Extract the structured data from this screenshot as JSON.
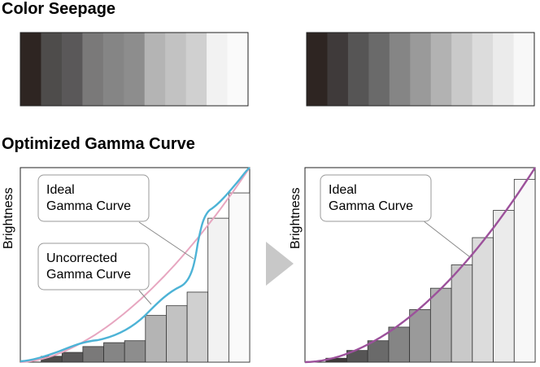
{
  "section_titles": {
    "seepage": "Color Seepage",
    "gamma": "Optimized Gamma Curve"
  },
  "strips": {
    "left": [
      "#2e2522",
      "#4e4c4b",
      "#5a5859",
      "#7a7979",
      "#858585",
      "#8d8d8d",
      "#b4b4b4",
      "#c2c2c2",
      "#d0d0d0",
      "#f2f2f2",
      "#fafafa"
    ],
    "right": [
      "#2e2522",
      "#3f3a3a",
      "#565555",
      "#6a6a6a",
      "#858585",
      "#9a9a9a",
      "#b2b2b2",
      "#c9c9c9",
      "#dcdcdc",
      "#ebebeb",
      "#f8f8f8"
    ]
  },
  "left_chart": {
    "ylabel": "Brightness",
    "callout_ideal": [
      "Ideal",
      "Gamma Curve"
    ],
    "callout_uncorrected": [
      "Uncorrected",
      "Gamma Curve"
    ],
    "bars": [
      0.0,
      0.03,
      0.05,
      0.08,
      0.1,
      0.11,
      0.24,
      0.29,
      0.36,
      0.74,
      0.87
    ],
    "bar_colors": [
      "#2e2522",
      "#4e4c4b",
      "#5a5859",
      "#7a7979",
      "#858585",
      "#8d8d8d",
      "#b4b4b4",
      "#c2c2c2",
      "#d0d0d0",
      "#f2f2f2",
      "#fafafa"
    ],
    "ideal_color": "#e7a6c0",
    "uncorrected_color": "#4db3d6"
  },
  "right_chart": {
    "ylabel": "Brightness",
    "callout_ideal": [
      "Ideal",
      "Gamma Curve"
    ],
    "bars": [
      0.0,
      0.02,
      0.06,
      0.11,
      0.18,
      0.27,
      0.38,
      0.5,
      0.64,
      0.78,
      0.94
    ],
    "bar_colors": [
      "#2e2522",
      "#3f3a3a",
      "#565555",
      "#6a6a6a",
      "#858585",
      "#9a9a9a",
      "#b2b2b2",
      "#c9c9c9",
      "#dcdcdc",
      "#ebebeb",
      "#f8f8f8"
    ],
    "curve_color": "#9c519b"
  },
  "arrow_color": "#c8c8c8"
}
